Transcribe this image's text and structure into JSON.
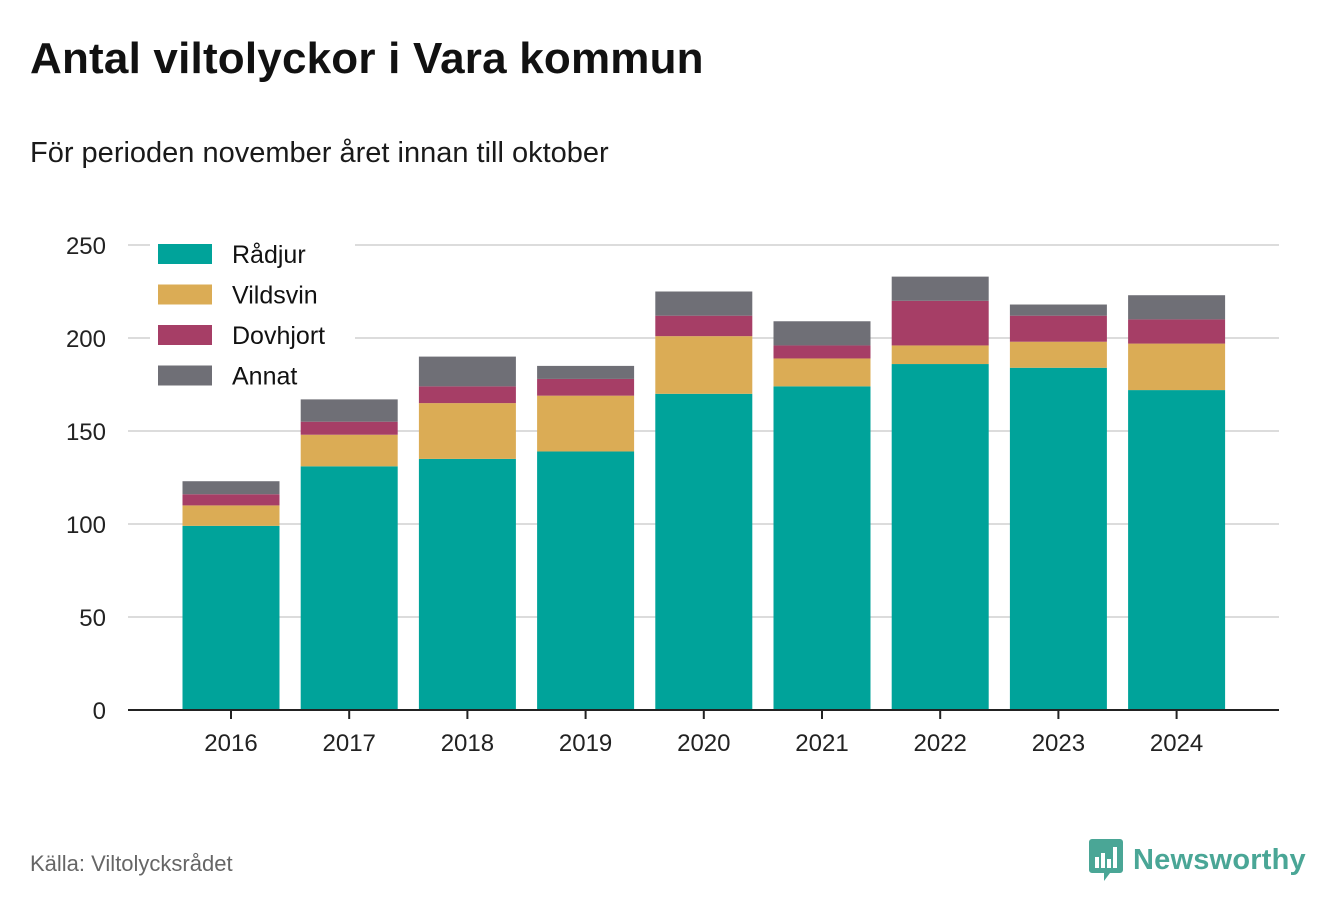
{
  "title": "Antal viltolyckor i Vara kommun",
  "subtitle": "För perioden november året innan till oktober",
  "source": "Källa: Viltolycksrådet",
  "brand": {
    "name": "Newsworthy",
    "color": "#4aa696"
  },
  "chart_data": {
    "type": "bar",
    "stacked": true,
    "categories": [
      "2016",
      "2017",
      "2018",
      "2019",
      "2020",
      "2021",
      "2022",
      "2023",
      "2024"
    ],
    "series": [
      {
        "name": "Rådjur",
        "color": "#00a39a",
        "values": [
          99,
          131,
          135,
          139,
          170,
          174,
          186,
          184,
          172
        ]
      },
      {
        "name": "Vildsvin",
        "color": "#dbac55",
        "values": [
          11,
          17,
          30,
          30,
          31,
          15,
          10,
          14,
          25
        ]
      },
      {
        "name": "Dovhjort",
        "color": "#a63e66",
        "values": [
          6,
          7,
          9,
          9,
          11,
          7,
          24,
          14,
          13
        ]
      },
      {
        "name": "Annat",
        "color": "#6f6f76",
        "values": [
          7,
          12,
          16,
          7,
          13,
          13,
          13,
          6,
          13
        ]
      }
    ],
    "ylim": [
      0,
      250
    ],
    "yticks": [
      0,
      50,
      100,
      150,
      200,
      250
    ],
    "grid": true,
    "legend_position": "top-left"
  }
}
